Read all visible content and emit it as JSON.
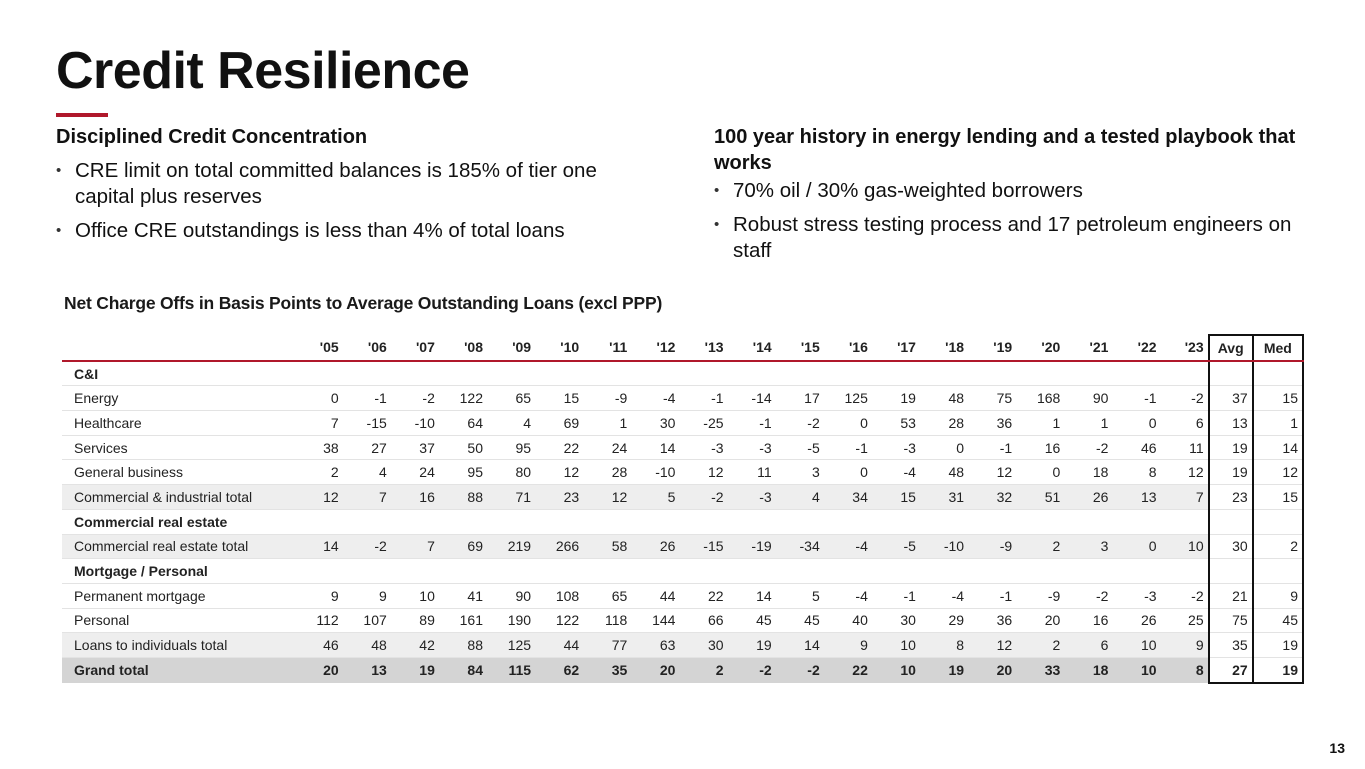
{
  "title": "Credit Resilience",
  "left": {
    "heading": "Disciplined Credit Concentration",
    "bullets": [
      "CRE limit on total committed balances is 185% of tier one capital plus reserves",
      "Office CRE outstandings is less than 4% of total loans"
    ]
  },
  "right": {
    "heading": "100 year history in energy lending and a tested playbook that works",
    "bullets": [
      "70% oil / 30% gas-weighted borrowers",
      "Robust stress testing process and 17 petroleum engineers on staff"
    ]
  },
  "table": {
    "title": "Net Charge Offs in Basis Points to Average Outstanding Loans (excl PPP)",
    "years": [
      "'05",
      "'06",
      "'07",
      "'08",
      "'09",
      "'10",
      "'11",
      "'12",
      "'13",
      "'14",
      "'15",
      "'16",
      "'17",
      "'18",
      "'19",
      "'20",
      "'21",
      "'22",
      "'23"
    ],
    "avg_label": "Avg",
    "med_label": "Med",
    "rows": [
      {
        "type": "section",
        "label": "C&I"
      },
      {
        "type": "data",
        "label": "Energy",
        "values": [
          "0",
          "-1",
          "-2",
          "122",
          "65",
          "15",
          "-9",
          "-4",
          "-1",
          "-14",
          "17",
          "125",
          "19",
          "48",
          "75",
          "168",
          "90",
          "-1",
          "-2"
        ],
        "avg": "37",
        "med": "15"
      },
      {
        "type": "data",
        "label": "Healthcare",
        "values": [
          "7",
          "-15",
          "-10",
          "64",
          "4",
          "69",
          "1",
          "30",
          "-25",
          "-1",
          "-2",
          "0",
          "53",
          "28",
          "36",
          "1",
          "1",
          "0",
          "6"
        ],
        "avg": "13",
        "med": "1"
      },
      {
        "type": "data",
        "label": "Services",
        "values": [
          "38",
          "27",
          "37",
          "50",
          "95",
          "22",
          "24",
          "14",
          "-3",
          "-3",
          "-5",
          "-1",
          "-3",
          "0",
          "-1",
          "16",
          "-2",
          "46",
          "11"
        ],
        "avg": "19",
        "med": "14"
      },
      {
        "type": "data",
        "label": "General business",
        "values": [
          "2",
          "4",
          "24",
          "95",
          "80",
          "12",
          "28",
          "-10",
          "12",
          "11",
          "3",
          "0",
          "-4",
          "48",
          "12",
          "0",
          "18",
          "8",
          "12"
        ],
        "avg": "19",
        "med": "12"
      },
      {
        "type": "total",
        "label": "Commercial & industrial total",
        "values": [
          "12",
          "7",
          "16",
          "88",
          "71",
          "23",
          "12",
          "5",
          "-2",
          "-3",
          "4",
          "34",
          "15",
          "31",
          "32",
          "51",
          "26",
          "13",
          "7"
        ],
        "avg": "23",
        "med": "15"
      },
      {
        "type": "section",
        "label": "Commercial real estate"
      },
      {
        "type": "total",
        "label": "Commercial real estate total",
        "values": [
          "14",
          "-2",
          "7",
          "69",
          "219",
          "266",
          "58",
          "26",
          "-15",
          "-19",
          "-34",
          "-4",
          "-5",
          "-10",
          "-9",
          "2",
          "3",
          "0",
          "10"
        ],
        "avg": "30",
        "med": "2"
      },
      {
        "type": "section",
        "label": "Mortgage / Personal"
      },
      {
        "type": "data",
        "label": "Permanent mortgage",
        "values": [
          "9",
          "9",
          "10",
          "41",
          "90",
          "108",
          "65",
          "44",
          "22",
          "14",
          "5",
          "-4",
          "-1",
          "-4",
          "-1",
          "-9",
          "-2",
          "-3",
          "-2"
        ],
        "avg": "21",
        "med": "9"
      },
      {
        "type": "data",
        "label": "Personal",
        "values": [
          "112",
          "107",
          "89",
          "161",
          "190",
          "122",
          "118",
          "144",
          "66",
          "45",
          "45",
          "40",
          "30",
          "29",
          "36",
          "20",
          "16",
          "26",
          "25"
        ],
        "avg": "75",
        "med": "45"
      },
      {
        "type": "total",
        "label": "Loans to individuals total",
        "values": [
          "46",
          "48",
          "42",
          "88",
          "125",
          "44",
          "77",
          "63",
          "30",
          "19",
          "14",
          "9",
          "10",
          "8",
          "12",
          "2",
          "6",
          "10",
          "9"
        ],
        "avg": "35",
        "med": "19"
      },
      {
        "type": "grand",
        "label": "Grand total",
        "values": [
          "20",
          "13",
          "19",
          "84",
          "115",
          "62",
          "35",
          "20",
          "2",
          "-2",
          "-2",
          "22",
          "10",
          "19",
          "20",
          "33",
          "18",
          "10",
          "8"
        ],
        "avg": "27",
        "med": "19"
      }
    ]
  },
  "page_number": "13"
}
